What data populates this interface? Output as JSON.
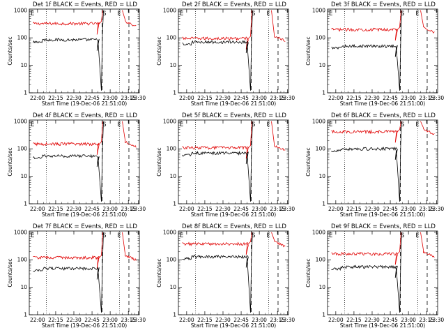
{
  "figure": {
    "description_title_pattern": "Det Nf BLACK = Events, RED = LLD",
    "xlabel": "Start Time (19-Dec-06 21:51:00)",
    "ylabel": "Counts/sec",
    "x_tick_labels": [
      "22:00",
      "22:15",
      "22:30",
      "22:45",
      "23:00",
      "23:15",
      "23:30"
    ],
    "y_tick_labels": [
      "1",
      "10",
      "100",
      "1000"
    ],
    "marker_labels": [
      "E",
      "S",
      "E"
    ],
    "colors": {
      "events": "#000000",
      "lld": "#e00000",
      "axes": "#000000",
      "background": "#ffffff"
    }
  },
  "chart_data": [
    {
      "type": "line",
      "title": "Det 1f BLACK = Events, RED = LLD",
      "ylim": [
        1,
        1000
      ],
      "yscale": "log",
      "series": [
        {
          "name": "BLACK = Events",
          "level": 85
        },
        {
          "name": "RED = LLD",
          "level": 330
        }
      ]
    },
    {
      "type": "line",
      "title": "Det 2f BLACK = Events, RED = LLD",
      "ylim": [
        1,
        1000
      ],
      "yscale": "log",
      "series": [
        {
          "name": "BLACK = Events",
          "level": 70
        },
        {
          "name": "RED = LLD",
          "level": 95
        }
      ]
    },
    {
      "type": "line",
      "title": "Det 3f BLACK = Events, RED = LLD",
      "ylim": [
        1,
        1000
      ],
      "yscale": "log",
      "series": [
        {
          "name": "BLACK = Events",
          "level": 50
        },
        {
          "name": "RED = LLD",
          "level": 200
        }
      ]
    },
    {
      "type": "line",
      "title": "Det 4f BLACK = Events, RED = LLD",
      "ylim": [
        1,
        1000
      ],
      "yscale": "log",
      "series": [
        {
          "name": "BLACK = Events",
          "level": 55
        },
        {
          "name": "RED = LLD",
          "level": 150
        }
      ]
    },
    {
      "type": "line",
      "title": "Det 5f BLACK = Events, RED = LLD",
      "ylim": [
        1,
        1000
      ],
      "yscale": "log",
      "series": [
        {
          "name": "BLACK = Events",
          "level": 70
        },
        {
          "name": "RED = LLD",
          "level": 110
        }
      ]
    },
    {
      "type": "line",
      "title": "Det 6f BLACK = Events, RED = LLD",
      "ylim": [
        1,
        1000
      ],
      "yscale": "log",
      "series": [
        {
          "name": "BLACK = Events",
          "level": 100
        },
        {
          "name": "RED = LLD",
          "level": 420
        }
      ]
    },
    {
      "type": "line",
      "title": "Det 7f BLACK = Events, RED = LLD",
      "ylim": [
        1,
        1000
      ],
      "yscale": "log",
      "series": [
        {
          "name": "BLACK = Events",
          "level": 48
        },
        {
          "name": "RED = LLD",
          "level": 120
        }
      ]
    },
    {
      "type": "line",
      "title": "Det 8f BLACK = Events, RED = LLD",
      "ylim": [
        1,
        1000
      ],
      "yscale": "log",
      "series": [
        {
          "name": "BLACK = Events",
          "level": 130
        },
        {
          "name": "RED = LLD",
          "level": 380
        }
      ]
    },
    {
      "type": "line",
      "title": "Det 9f BLACK = Events, RED = LLD",
      "ylim": [
        1,
        1000
      ],
      "yscale": "log",
      "series": [
        {
          "name": "BLACK = Events",
          "level": 55
        },
        {
          "name": "RED = LLD",
          "level": 165
        }
      ]
    }
  ]
}
